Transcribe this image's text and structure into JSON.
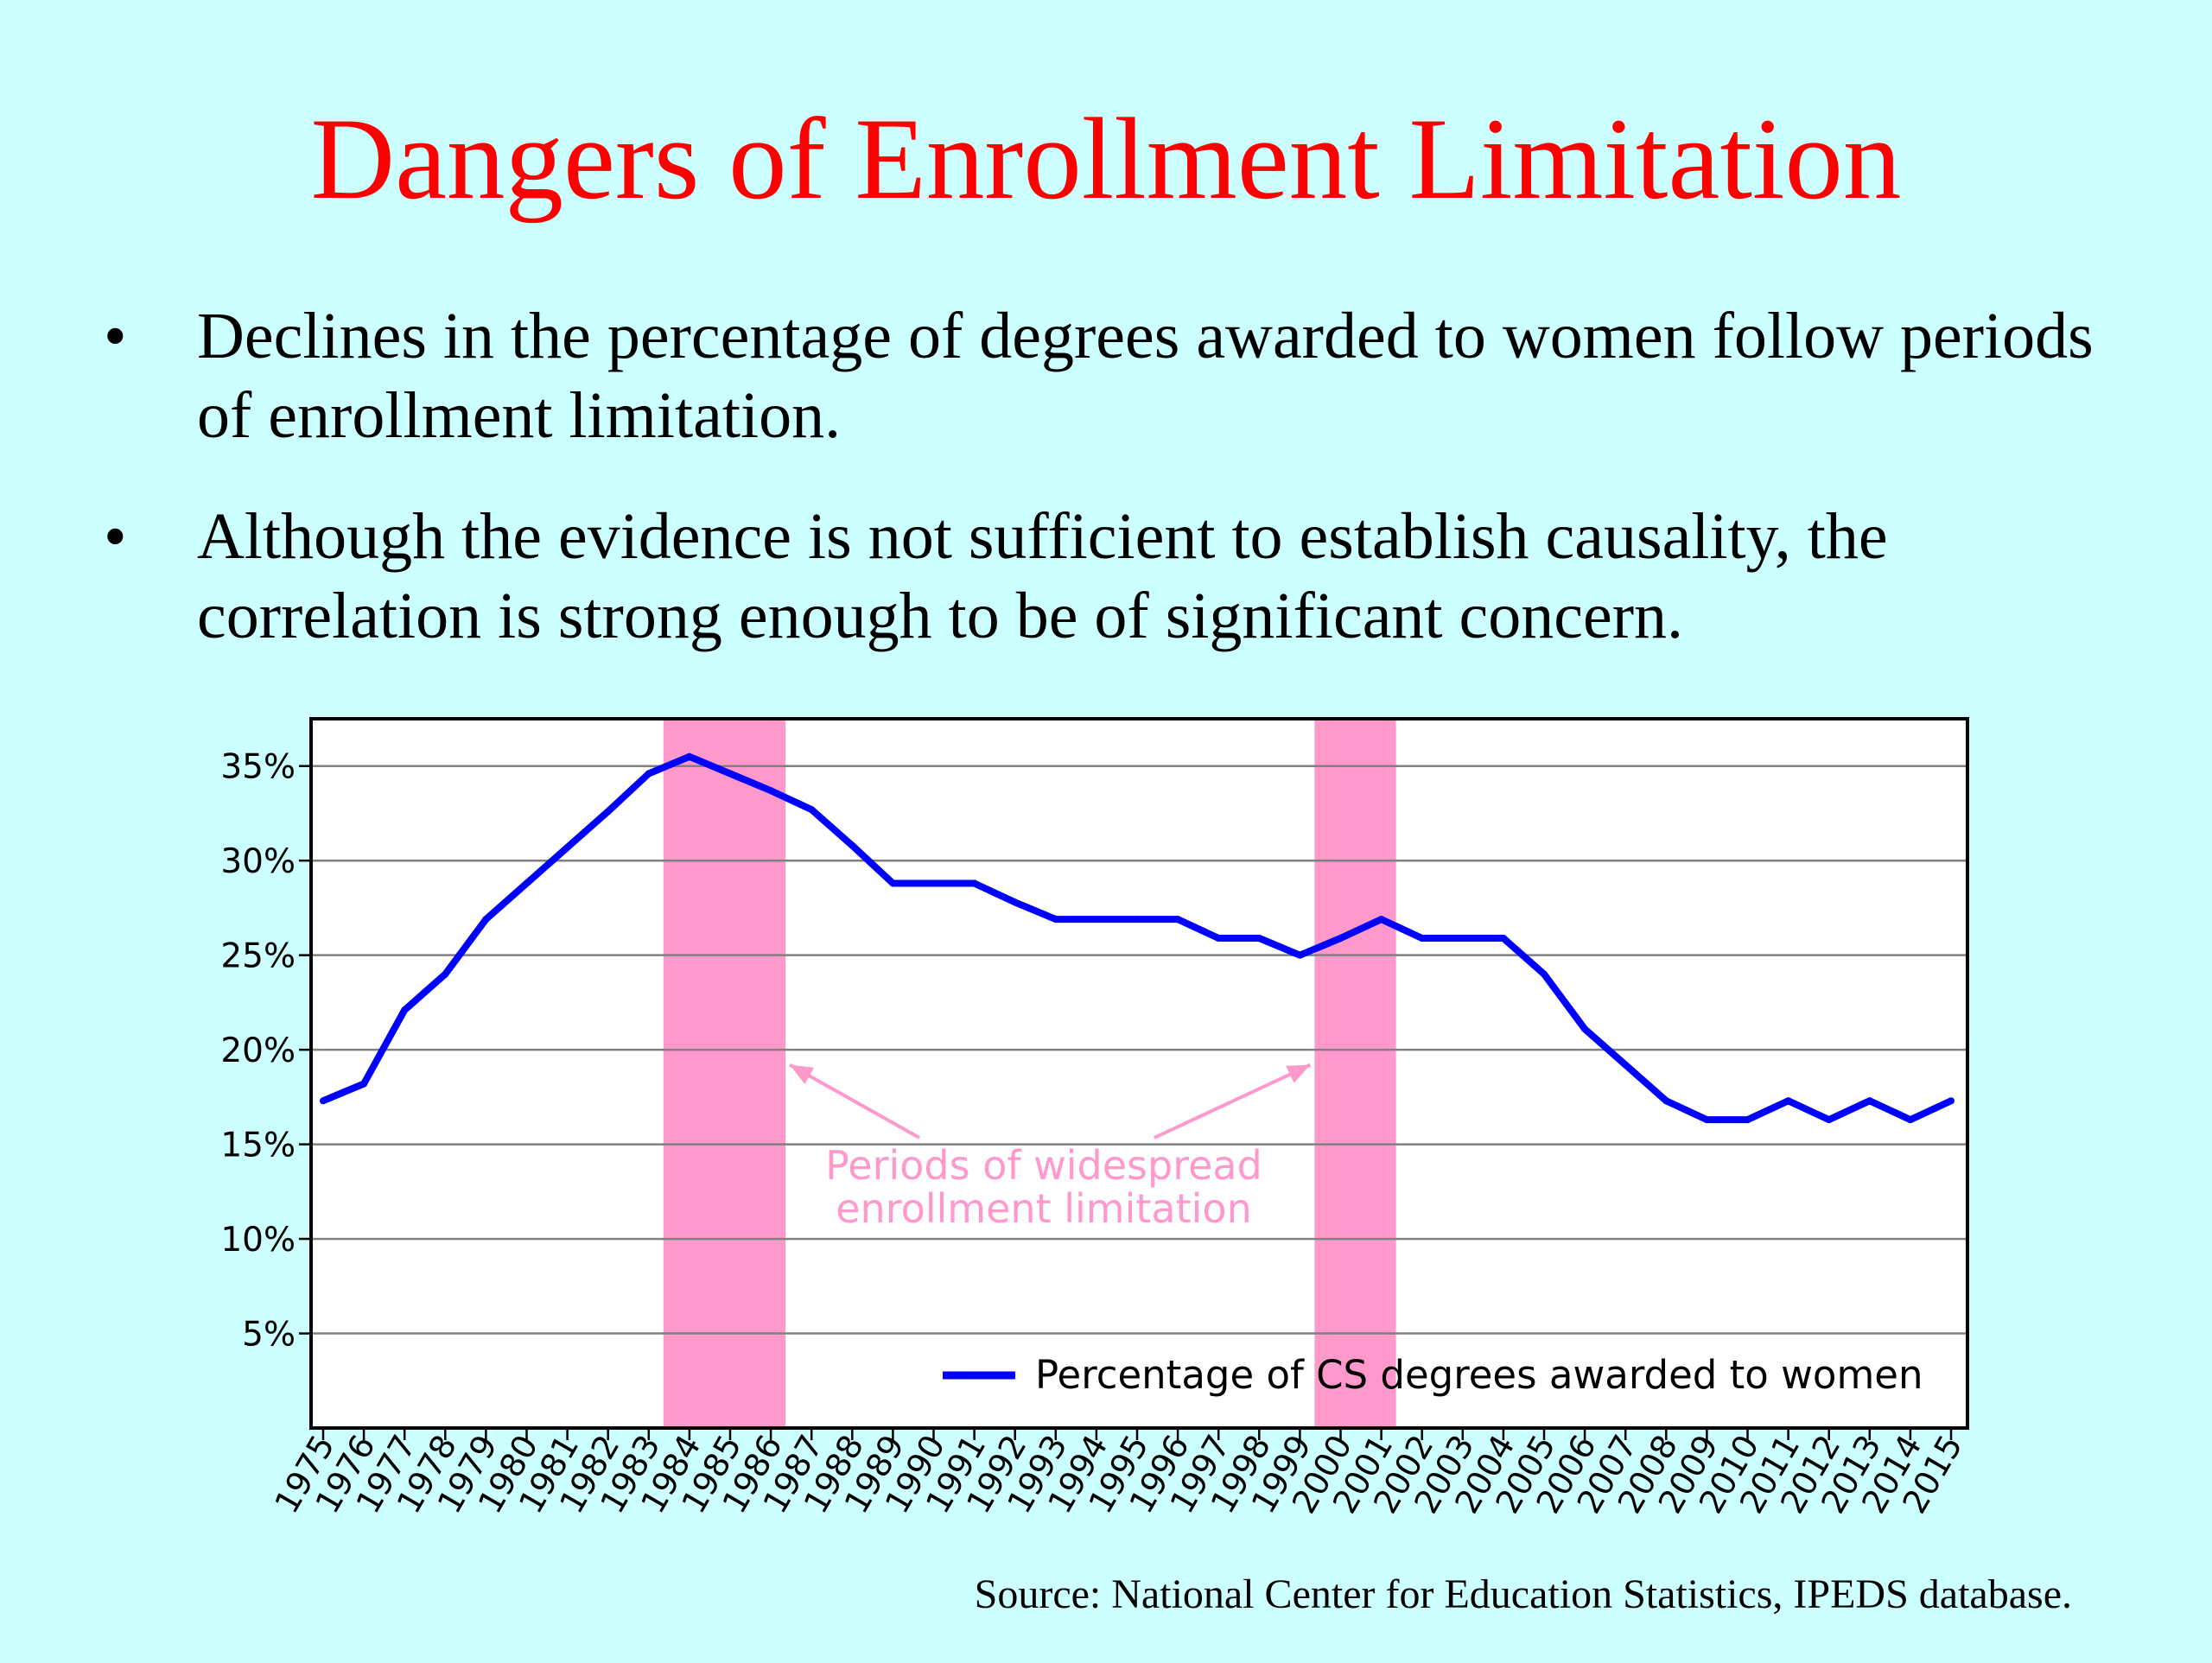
{
  "slide": {
    "title": "Dangers of Enrollment Limitation",
    "bullets": [
      "Declines in the percentage of degrees awarded to women follow periods of enrollment limitation.",
      "Although the evidence is not sufficient to establish causality, the correlation is strong enough to be of significant concern."
    ],
    "bullet_symbol": "•",
    "source": "Source:  National Center for Education Statistics, IPEDS database."
  },
  "chart_data": {
    "type": "line",
    "title": "",
    "xlabel": "",
    "ylabel": "",
    "x": [
      "1975",
      "1976",
      "1977",
      "1978",
      "1979",
      "1980",
      "1981",
      "1982",
      "1983",
      "1984",
      "1985",
      "1986",
      "1987",
      "1988",
      "1989",
      "1990",
      "1991",
      "1992",
      "1993",
      "1994",
      "1995",
      "1996",
      "1997",
      "1998",
      "1999",
      "2000",
      "2001",
      "2002",
      "2003",
      "2004",
      "2005",
      "2006",
      "2007",
      "2008",
      "2009",
      "2010",
      "2011",
      "2012",
      "2013",
      "2014",
      "2015"
    ],
    "series": [
      {
        "name": "Percentage of CS degrees awarded to women",
        "color": "#0000ff",
        "values": [
          17.3,
          18.2,
          22.1,
          24.0,
          26.9,
          28.8,
          30.7,
          32.6,
          34.6,
          35.5,
          34.6,
          33.7,
          32.7,
          30.8,
          28.8,
          28.8,
          28.8,
          27.8,
          26.9,
          26.9,
          26.9,
          26.9,
          25.9,
          25.9,
          25.0,
          25.9,
          26.9,
          25.9,
          25.9,
          25.9,
          24.0,
          21.1,
          19.2,
          17.3,
          16.3,
          16.3,
          17.3,
          16.3,
          17.3,
          16.3,
          17.3
        ]
      }
    ],
    "y_ticks": [
      5,
      10,
      15,
      20,
      25,
      30,
      35
    ],
    "y_tick_labels": [
      "5%",
      "10%",
      "15%",
      "20%",
      "25%",
      "30%",
      "35%"
    ],
    "ylim": [
      0,
      37.5
    ],
    "grid": true,
    "legend_position": "bottom-right",
    "shaded_periods": [
      {
        "start": "1983",
        "end": "1986",
        "color": "#ff99cc"
      },
      {
        "start": "1999",
        "end": "2001",
        "color": "#ff99cc"
      }
    ],
    "annotation": {
      "lines": [
        "Periods of widespread",
        "enrollment limitation"
      ],
      "color": "#ff99cc"
    },
    "axis_color": "#000000",
    "plot_background": "#ffffff"
  }
}
